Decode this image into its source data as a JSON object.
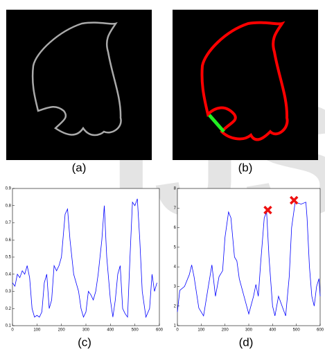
{
  "watermark": "IJS",
  "panels": [
    "(a)",
    "(b)",
    "(c)",
    "(d)"
  ],
  "chart_data": [
    {
      "type": "line",
      "x": [
        0,
        10,
        20,
        30,
        40,
        50,
        60,
        70,
        80,
        90,
        100,
        110,
        120,
        130,
        140,
        150,
        160,
        170,
        180,
        190,
        200,
        215,
        225,
        235,
        250,
        260,
        270,
        280,
        290,
        300,
        310,
        320,
        330,
        340,
        350,
        365,
        375,
        385,
        400,
        410,
        420,
        430,
        440,
        450,
        460,
        470,
        480,
        490,
        500,
        510,
        520,
        530,
        545,
        560,
        570,
        580,
        590
      ],
      "series": [
        {
          "color": "#0000ff",
          "values": [
            0.35,
            0.33,
            0.4,
            0.38,
            0.42,
            0.4,
            0.45,
            0.38,
            0.2,
            0.15,
            0.16,
            0.15,
            0.18,
            0.35,
            0.4,
            0.2,
            0.25,
            0.45,
            0.42,
            0.45,
            0.5,
            0.75,
            0.78,
            0.6,
            0.4,
            0.35,
            0.3,
            0.2,
            0.15,
            0.18,
            0.3,
            0.28,
            0.25,
            0.3,
            0.4,
            0.6,
            0.8,
            0.5,
            0.25,
            0.15,
            0.25,
            0.4,
            0.45,
            0.2,
            0.17,
            0.15,
            0.5,
            0.82,
            0.8,
            0.84,
            0.6,
            0.3,
            0.15,
            0.2,
            0.4,
            0.3,
            0.35
          ]
        }
      ],
      "xlim": [
        0,
        600
      ],
      "ylim": [
        0.1,
        0.9
      ],
      "xticks": [
        0,
        100,
        200,
        300,
        400,
        500,
        600
      ],
      "yticks": [
        0.1,
        0.2,
        0.3,
        0.4,
        0.5,
        0.6,
        0.7,
        0.8,
        0.9
      ]
    },
    {
      "type": "line",
      "x": [
        0,
        10,
        30,
        50,
        60,
        70,
        90,
        110,
        130,
        145,
        160,
        175,
        190,
        200,
        215,
        225,
        240,
        250,
        260,
        280,
        300,
        320,
        330,
        340,
        350,
        365,
        375,
        385,
        400,
        410,
        425,
        440,
        455,
        470,
        480,
        495,
        520,
        540,
        545,
        555,
        565,
        575,
        585,
        595,
        600
      ],
      "series": [
        {
          "color": "#0000ff",
          "values": [
            1.7,
            2.8,
            3.0,
            3.6,
            4.1,
            3.5,
            1.9,
            1.5,
            3.0,
            4.1,
            2.5,
            3.5,
            3.8,
            5.5,
            6.8,
            6.5,
            4.5,
            4.3,
            3.4,
            2.5,
            1.6,
            2.5,
            3.1,
            2.5,
            4.2,
            6.5,
            6.8,
            4.5,
            2.0,
            1.5,
            2.5,
            2.0,
            1.5,
            3.5,
            6.0,
            7.3,
            7.2,
            7.3,
            6.5,
            4.0,
            2.5,
            2.0,
            3.0,
            3.4,
            2.5
          ]
        }
      ],
      "markers": {
        "x": [
          380,
          490
        ],
        "y": [
          6.9,
          7.4
        ],
        "color": "#ee1111"
      },
      "xlim": [
        0,
        600
      ],
      "ylim": [
        1,
        8
      ],
      "xticks": [
        0,
        100,
        200,
        300,
        400,
        500,
        600
      ],
      "yticks": [
        1,
        2,
        3,
        4,
        5,
        6,
        7,
        8
      ]
    }
  ]
}
